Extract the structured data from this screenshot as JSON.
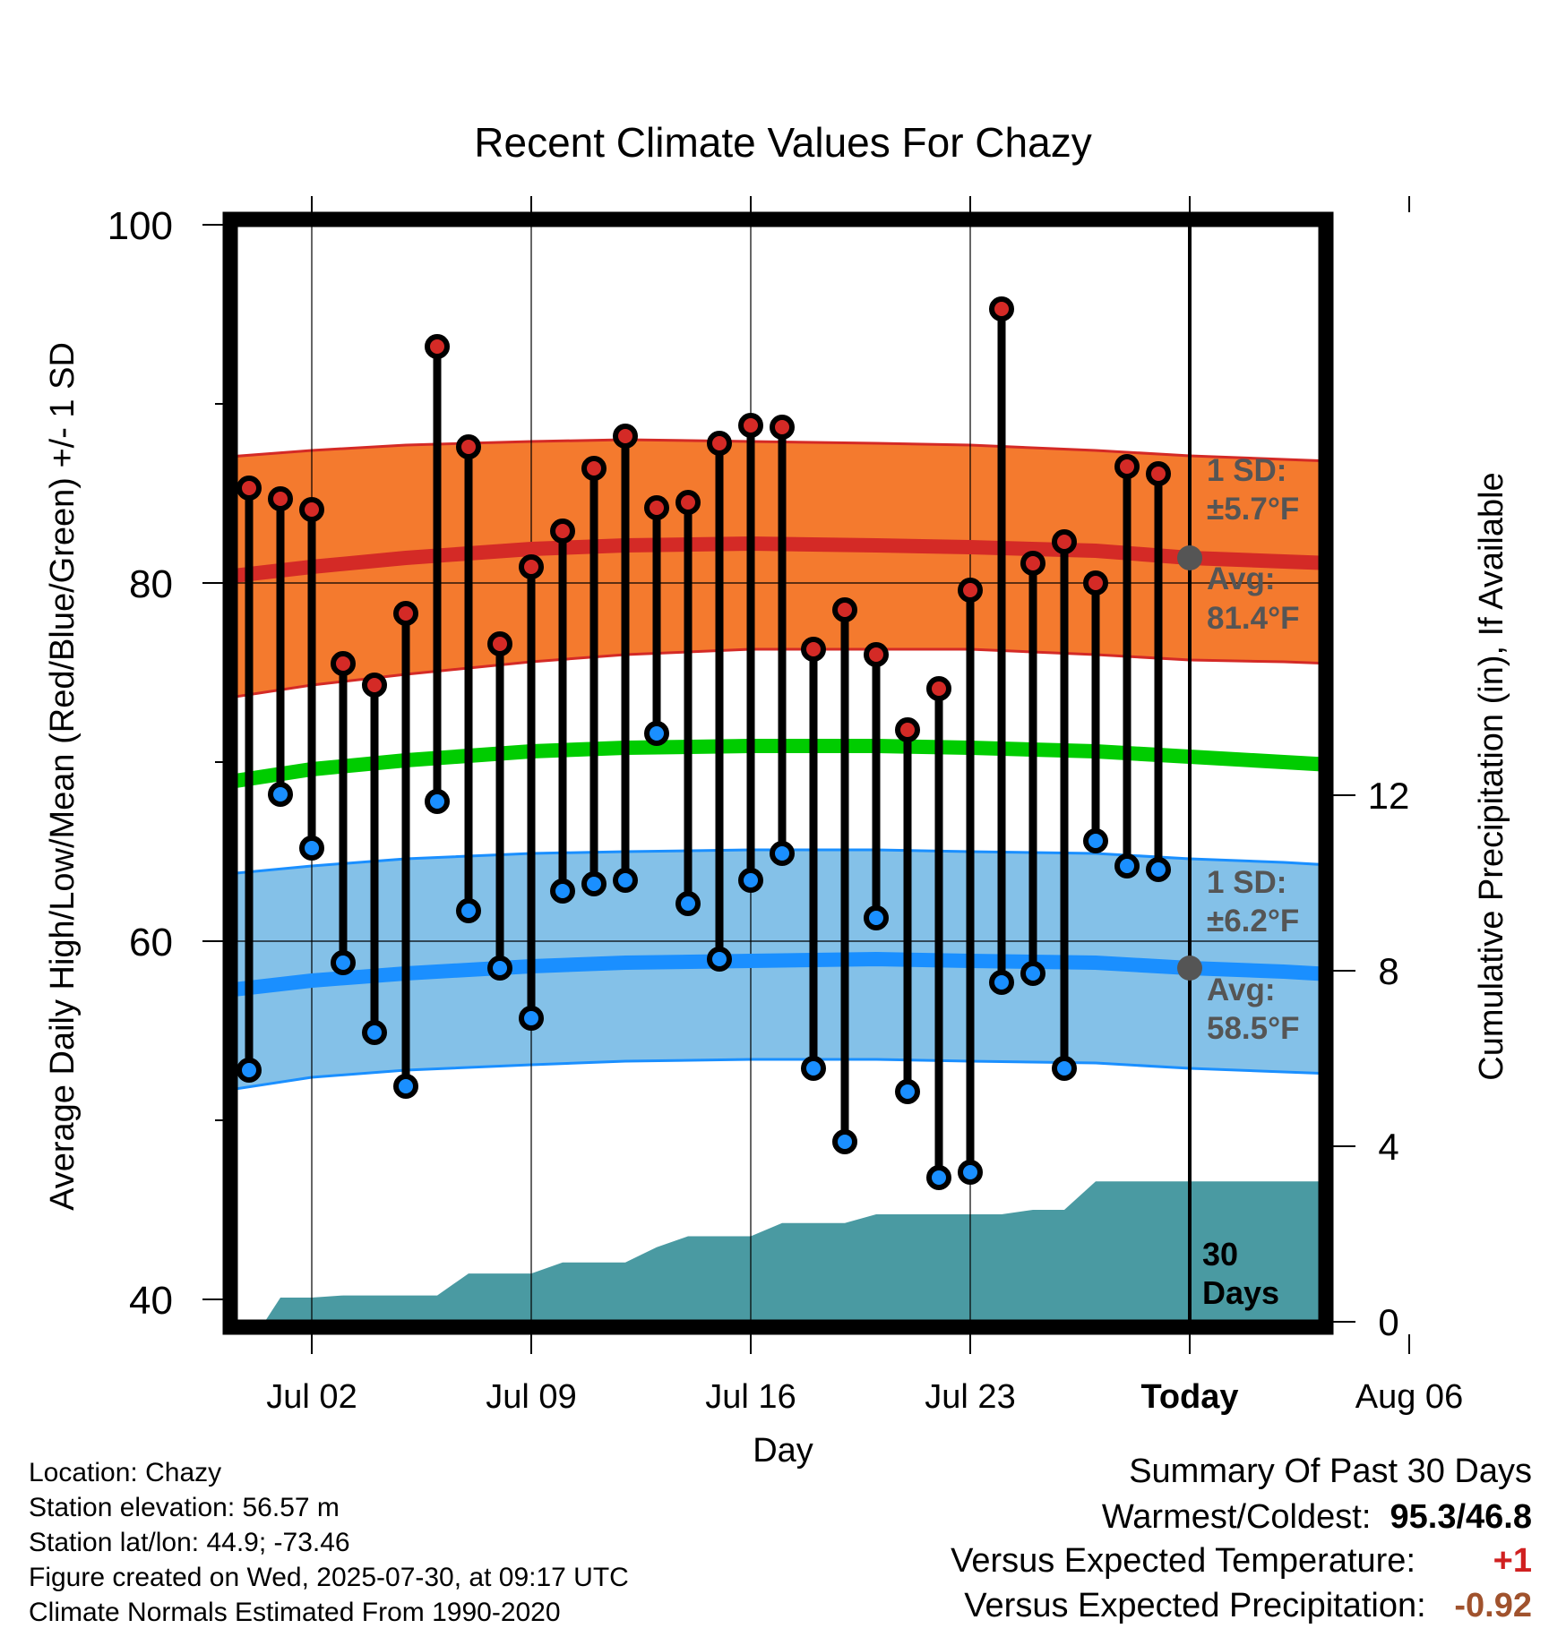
{
  "chart_data": {
    "type": "line",
    "title": "Recent Climate Values For Chazy",
    "xlabel": "Day",
    "ylabel": "Average Daily High/Low/Mean (Red/Blue/Green) +/- 1 SD",
    "y2label": "Cumulative Precipitation (in), If Available",
    "ylim": [
      40,
      100
    ],
    "y2lim": [
      0,
      16
    ],
    "yticks": [
      "40",
      "60",
      "80",
      "100"
    ],
    "y2ticks": [
      "0",
      "4",
      "8",
      "12"
    ],
    "xticks": [
      {
        "day": 2,
        "label": "Jul 02"
      },
      {
        "day": 9,
        "label": "Jul 09"
      },
      {
        "day": 16,
        "label": "Jul 16"
      },
      {
        "day": 23,
        "label": "Jul 23"
      },
      {
        "day": 30,
        "label": "Today"
      },
      {
        "day": 37,
        "label": "Aug 06"
      }
    ],
    "xlim": [
      -1.5,
      40.5
    ],
    "grid": true,
    "normals": {
      "days": [
        -1,
        2,
        5,
        9,
        12,
        16,
        20,
        23,
        27,
        30,
        33,
        36,
        40
      ],
      "high_avg": [
        80.3,
        80.9,
        81.4,
        81.9,
        82.1,
        82.2,
        82.1,
        82.0,
        81.8,
        81.4,
        81.2,
        81.0,
        80.5
      ],
      "high_sd_upper": [
        87.0,
        87.4,
        87.7,
        87.9,
        88.0,
        87.9,
        87.8,
        87.7,
        87.4,
        87.1,
        86.9,
        86.7,
        86.5
      ],
      "high_sd_lower": [
        73.5,
        74.3,
        74.9,
        75.6,
        76.0,
        76.3,
        76.3,
        76.3,
        76.0,
        75.7,
        75.6,
        75.4,
        75.3
      ],
      "mean_avg": [
        68.8,
        69.6,
        70.1,
        70.6,
        70.8,
        70.9,
        70.9,
        70.8,
        70.6,
        70.3,
        70.0,
        69.7,
        69.2
      ],
      "low_avg": [
        57.2,
        57.8,
        58.2,
        58.6,
        58.8,
        58.9,
        59.0,
        58.9,
        58.8,
        58.5,
        58.3,
        58.0,
        57.4
      ],
      "low_sd_upper": [
        63.7,
        64.2,
        64.6,
        64.9,
        65.0,
        65.1,
        65.1,
        65.0,
        64.9,
        64.6,
        64.4,
        64.1,
        63.9
      ],
      "low_sd_lower": [
        51.6,
        52.4,
        52.8,
        53.1,
        53.3,
        53.4,
        53.4,
        53.3,
        53.2,
        52.9,
        52.7,
        52.5,
        52.1
      ]
    },
    "series": [
      {
        "name": "High",
        "days": [
          0,
          1,
          2,
          3,
          4,
          5,
          6,
          7,
          8,
          9,
          10,
          11,
          12,
          13,
          14,
          15,
          16,
          17,
          18,
          19,
          20,
          21,
          22,
          23,
          24,
          25,
          26,
          27,
          28,
          29
        ],
        "values": [
          85.3,
          84.7,
          84.1,
          75.5,
          74.3,
          78.3,
          93.2,
          87.6,
          76.6,
          80.9,
          82.9,
          86.4,
          88.2,
          84.2,
          84.5,
          87.8,
          88.8,
          88.7,
          76.3,
          78.5,
          76.0,
          71.8,
          74.1,
          79.6,
          95.3,
          81.1,
          82.3,
          80.0,
          86.5,
          86.1
        ]
      },
      {
        "name": "Low",
        "days": [
          0,
          1,
          2,
          3,
          4,
          5,
          6,
          7,
          8,
          9,
          10,
          11,
          12,
          13,
          14,
          15,
          16,
          17,
          18,
          19,
          20,
          21,
          22,
          23,
          24,
          25,
          26,
          27,
          28,
          29
        ],
        "values": [
          52.8,
          68.2,
          65.2,
          58.8,
          54.9,
          51.9,
          67.8,
          61.7,
          58.5,
          55.7,
          62.8,
          63.2,
          63.4,
          71.6,
          62.1,
          59.0,
          63.4,
          64.9,
          52.9,
          48.8,
          61.3,
          51.6,
          46.8,
          47.1,
          57.7,
          58.2,
          52.9,
          65.6,
          64.2,
          64.0
        ]
      }
    ],
    "precipitation": {
      "days": [
        0.5,
        1,
        2,
        3,
        4,
        5,
        6,
        7,
        8,
        9,
        10,
        11,
        12,
        13,
        14,
        15,
        16,
        17,
        18,
        19,
        20,
        21,
        22,
        23,
        24,
        25,
        26,
        27,
        28,
        29,
        30,
        40
      ],
      "values": [
        0,
        0.55,
        0.55,
        0.6,
        0.6,
        0.6,
        0.6,
        1.1,
        1.1,
        1.1,
        1.35,
        1.35,
        1.35,
        1.7,
        1.95,
        1.95,
        1.95,
        2.25,
        2.25,
        2.25,
        2.45,
        2.45,
        2.45,
        2.45,
        2.45,
        2.55,
        2.55,
        3.2,
        3.2,
        3.2,
        3.2,
        3.2
      ]
    },
    "annotations": {
      "high_sd": "1 SD:",
      "high_sd_value": "±5.7°F",
      "high_avg_label": "Avg:",
      "high_avg_value": "81.4°F",
      "low_sd": "1 SD:",
      "low_sd_value": "±6.2°F",
      "low_avg_label": "Avg:",
      "low_avg_value": "58.5°F",
      "days_line1": "30",
      "days_line2": "Days",
      "today_high": 81.4,
      "today_low": 58.5
    },
    "colors": {
      "high_band": "#f47a2e",
      "high_line": "#d42a26",
      "mean_line": "#00cc00",
      "low_band": "#84c1e8",
      "low_line": "#1a8fff",
      "precip": "#4a9aa2",
      "high_dot": "#d42a26",
      "low_dot": "#1a8fff",
      "annotation": "#555555"
    }
  },
  "info": {
    "location": "Location: Chazy",
    "elevation": "Station elevation: 56.57 m",
    "latlon": "Station lat/lon: 44.9; -73.46",
    "created": "Figure created on Wed, 2025-07-30, at 09:17 UTC",
    "normals": "Climate Normals Estimated From 1990-2020"
  },
  "summary": {
    "title": "Summary Of Past 30 Days",
    "warmest_label": "Warmest/Coldest:",
    "warmest_value": "95.3/46.8",
    "temp_label": "Versus Expected Temperature:",
    "temp_value": "+1",
    "precip_label": "Versus Expected Precipitation:",
    "precip_value": "-0.92"
  }
}
